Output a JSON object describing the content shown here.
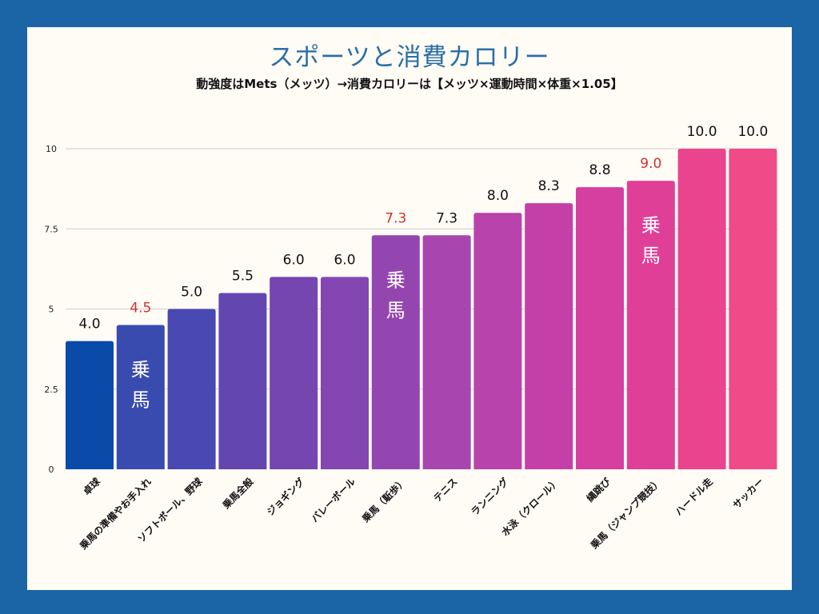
{
  "colors": {
    "background": "#1b65a6",
    "card": "#fffbf5",
    "title": "#2a6fa8",
    "highlight_label": "#d0302f",
    "normal_label": "#111111",
    "grid": "#cfcfcf"
  },
  "chart_data": {
    "type": "bar",
    "title": "スポーツと消費カロリー",
    "subtitle": "動強度はMets（メッツ）→消費カロリーは【メッツ×運動時間×体重×1.05】",
    "xlabel": "",
    "ylabel": "",
    "ylim": [
      0,
      10
    ],
    "yticks": [
      "0",
      "2.5",
      "5",
      "7.5",
      "10"
    ],
    "ytick_values": [
      0,
      2.5,
      5,
      7.5,
      10
    ],
    "grid": true,
    "legend": "none",
    "categories": [
      "卓球",
      "乗馬の準備やお手入れ",
      "ソフトボール、野球",
      "乗馬全般",
      "ジョギング",
      "バレーボール",
      "乗馬（駈歩）",
      "テニス",
      "ランニング",
      "水泳（クロール）",
      "縄跳び",
      "乗馬（ジャンプ競技）",
      "ハードル走",
      "サッカー"
    ],
    "values": [
      4.0,
      4.5,
      5.0,
      5.5,
      6.0,
      6.0,
      7.3,
      7.3,
      8.0,
      8.3,
      8.8,
      9.0,
      10.0,
      10.0
    ],
    "data_labels": [
      "4.0",
      "4.5",
      "5.0",
      "5.5",
      "6.0",
      "6.0",
      "7.3",
      "7.3",
      "8.0",
      "8.3",
      "8.8",
      "9.0",
      "10.0",
      "10.0"
    ],
    "highlighted": [
      false,
      true,
      false,
      false,
      false,
      false,
      true,
      false,
      false,
      false,
      false,
      true,
      false,
      false
    ],
    "inbar_annotation": "乗馬",
    "bar_colors": [
      "#0a4aa8",
      "#3a4bb0",
      "#4a48b2",
      "#6446b0",
      "#7545b0",
      "#8446b0",
      "#9446b0",
      "#a846b0",
      "#b843ac",
      "#c440a8",
      "#d43fa0",
      "#e03f98",
      "#ea448e",
      "#f04a88"
    ]
  }
}
